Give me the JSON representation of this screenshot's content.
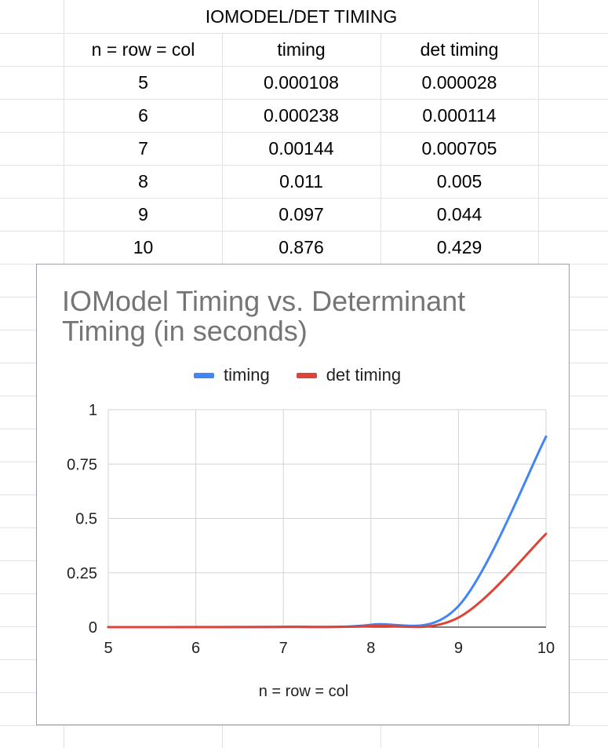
{
  "sheet": {
    "title": "IOMODEL/DET TIMING",
    "headers": [
      "n = row = col",
      "timing",
      "det timing"
    ],
    "rows": [
      [
        "5",
        "0.000108",
        "0.000028"
      ],
      [
        "6",
        "0.000238",
        "0.000114"
      ],
      [
        "7",
        "0.00144",
        "0.000705"
      ],
      [
        "8",
        "0.011",
        "0.005"
      ],
      [
        "9",
        "0.097",
        "0.044"
      ],
      [
        "10",
        "0.876",
        "0.429"
      ]
    ]
  },
  "chart_data": {
    "type": "line",
    "title": "IOModel Timing vs. Determinant Timing (in seconds)",
    "xlabel": "n = row = col",
    "ylabel": "",
    "x": [
      5,
      6,
      7,
      8,
      9,
      10
    ],
    "x_ticks": [
      "5",
      "6",
      "7",
      "8",
      "9",
      "10"
    ],
    "y_ticks": [
      "0",
      "0.25",
      "0.5",
      "0.75",
      "1"
    ],
    "xlim": [
      5,
      10
    ],
    "ylim": [
      0,
      1
    ],
    "grid": true,
    "smooth": true,
    "legend_position": "top",
    "series": [
      {
        "name": "timing",
        "color": "#4285f4",
        "values": [
          0.000108,
          0.000238,
          0.00144,
          0.011,
          0.097,
          0.876
        ]
      },
      {
        "name": "det timing",
        "color": "#db4437",
        "values": [
          2.8e-05,
          0.000114,
          0.000705,
          0.005,
          0.044,
          0.429
        ]
      }
    ]
  },
  "colors": {
    "gridline": "#e2e2e2",
    "chart_border": "#9aa0a6",
    "title_text": "#757575"
  }
}
